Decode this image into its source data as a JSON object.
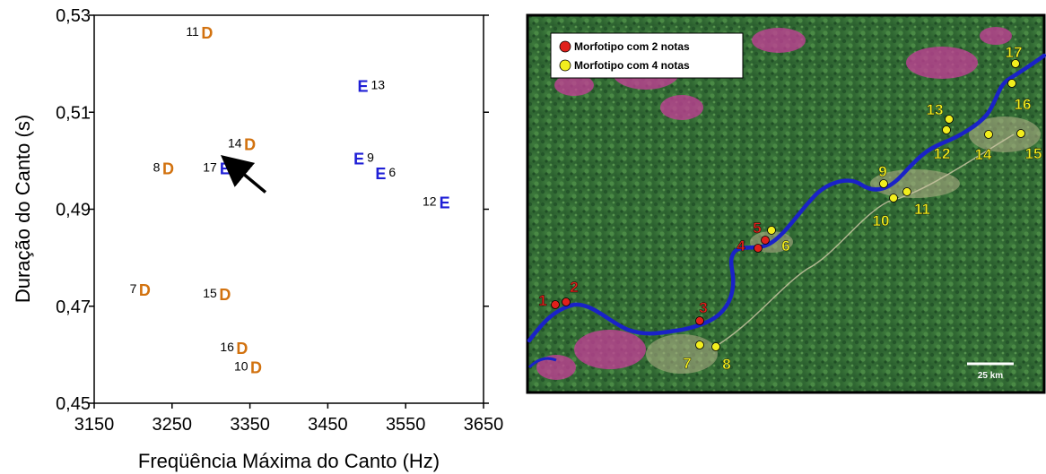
{
  "chart_data": {
    "type": "scatter",
    "xlabel": "Freqüência Máxima do Canto (Hz)",
    "ylabel": "Duração do Canto (s)",
    "xlim": [
      3150,
      3650
    ],
    "ylim": [
      0.45,
      0.53
    ],
    "xticks": [
      "3150",
      "3250",
      "3350",
      "3450",
      "3550",
      "3650"
    ],
    "yticks": [
      "0,45",
      "0,47",
      "0,49",
      "0,51",
      "0,53"
    ],
    "grid": false,
    "point_colors": {
      "D": "#d2720f",
      "E": "#1f1fd6"
    },
    "points": [
      {
        "id": "11",
        "cls": "D",
        "x": 3295,
        "y": 0.5265,
        "label_side": "left"
      },
      {
        "id": "13",
        "cls": "E",
        "x": 3495,
        "y": 0.5155,
        "label_side": "right"
      },
      {
        "id": "14",
        "cls": "D",
        "x": 3350,
        "y": 0.5035,
        "label_side": "left"
      },
      {
        "id": "9",
        "cls": "E",
        "x": 3490,
        "y": 0.5005,
        "label_side": "right"
      },
      {
        "id": "8",
        "cls": "D",
        "x": 3245,
        "y": 0.4985,
        "label_side": "left"
      },
      {
        "id": "17",
        "cls": "E",
        "x": 3318,
        "y": 0.4985,
        "label_side": "left"
      },
      {
        "id": "6",
        "cls": "E",
        "x": 3518,
        "y": 0.4975,
        "label_side": "right"
      },
      {
        "id": "12",
        "cls": "E",
        "x": 3600,
        "y": 0.4915,
        "label_side": "left"
      },
      {
        "id": "7",
        "cls": "D",
        "x": 3215,
        "y": 0.4735,
        "label_side": "left"
      },
      {
        "id": "15",
        "cls": "D",
        "x": 3318,
        "y": 0.4725,
        "label_side": "left"
      },
      {
        "id": "16",
        "cls": "D",
        "x": 3340,
        "y": 0.4615,
        "label_side": "left"
      },
      {
        "id": "10",
        "cls": "D",
        "x": 3358,
        "y": 0.4575,
        "label_side": "left"
      }
    ],
    "arrow": {
      "from": [
        3370,
        0.4935
      ],
      "to": [
        3328,
        0.4975
      ]
    }
  },
  "map": {
    "legend": [
      {
        "label": "Morfotipo com 2 notas",
        "color": "#e0201c"
      },
      {
        "label": "Morfotipo com 4 notas",
        "color": "#f2ee1e"
      }
    ],
    "scale_label": "25 km",
    "sites": [
      {
        "id": "1",
        "group": "red"
      },
      {
        "id": "2",
        "group": "red"
      },
      {
        "id": "3",
        "group": "red"
      },
      {
        "id": "4",
        "group": "red"
      },
      {
        "id": "5",
        "group": "red"
      },
      {
        "id": "6",
        "group": "yellow"
      },
      {
        "id": "7",
        "group": "yellow"
      },
      {
        "id": "8",
        "group": "yellow"
      },
      {
        "id": "9",
        "group": "yellow"
      },
      {
        "id": "10",
        "group": "yellow"
      },
      {
        "id": "11",
        "group": "yellow"
      },
      {
        "id": "12",
        "group": "yellow"
      },
      {
        "id": "13",
        "group": "yellow"
      },
      {
        "id": "14",
        "group": "yellow"
      },
      {
        "id": "15",
        "group": "yellow"
      },
      {
        "id": "16",
        "group": "yellow"
      },
      {
        "id": "17",
        "group": "yellow"
      }
    ],
    "colors": {
      "red": "#e0201c",
      "yellow": "#f2ee1e",
      "river": "#1a22c8",
      "forest": "#2f6a34"
    }
  }
}
